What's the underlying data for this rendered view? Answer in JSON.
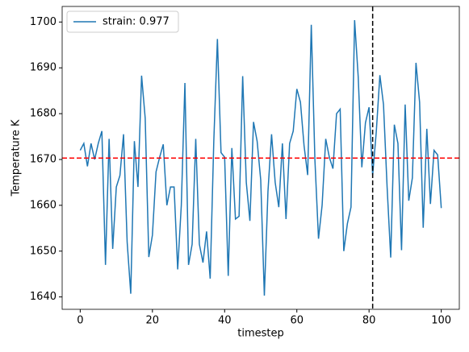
{
  "chart_data": {
    "type": "line",
    "x_label": "timestep",
    "y_label": "Temperature K",
    "x": [
      0,
      1,
      2,
      3,
      4,
      5,
      6,
      7,
      8,
      9,
      10,
      11,
      12,
      13,
      14,
      15,
      16,
      17,
      18,
      19,
      20,
      21,
      22,
      23,
      24,
      25,
      26,
      27,
      28,
      29,
      30,
      31,
      32,
      33,
      34,
      35,
      36,
      37,
      38,
      39,
      40,
      41,
      42,
      43,
      44,
      45,
      46,
      47,
      48,
      49,
      50,
      51,
      52,
      53,
      54,
      55,
      56,
      57,
      58,
      59,
      60,
      61,
      62,
      63,
      64,
      65,
      66,
      67,
      68,
      69,
      70,
      71,
      72,
      73,
      74,
      75,
      76,
      77,
      78,
      79,
      80,
      81,
      82,
      83,
      84,
      85,
      86,
      87,
      88,
      89,
      90,
      91,
      92,
      93,
      94,
      95,
      96,
      97,
      98,
      99,
      100
    ],
    "series": [
      {
        "name": "strain: 0.977",
        "color": "#1f77b4",
        "values": [
          1672,
          1673.5,
          1668.5,
          1673.5,
          1670,
          1673.5,
          1676.2,
          1647,
          1674.5,
          1650.5,
          1664,
          1666.5,
          1675.5,
          1652,
          1640.7,
          1674,
          1664,
          1688.3,
          1679,
          1648.7,
          1653.5,
          1667.3,
          1670.5,
          1673.3,
          1660,
          1664,
          1664,
          1646,
          1660,
          1686.7,
          1647,
          1651.5,
          1674.5,
          1651.5,
          1647.5,
          1654.3,
          1644,
          1674,
          1696.3,
          1671.5,
          1670.5,
          1644.6,
          1672.5,
          1657,
          1657.6,
          1688.2,
          1665,
          1656.6,
          1678.2,
          1674,
          1665.5,
          1640.3,
          1663,
          1675.5,
          1665,
          1659.6,
          1673.5,
          1657,
          1673.5,
          1676.2,
          1685.4,
          1682.5,
          1673,
          1666.6,
          1699.4,
          1670,
          1652.7,
          1660,
          1674.5,
          1670.5,
          1668,
          1680,
          1681,
          1650,
          1656,
          1659.6,
          1700.4,
          1688,
          1668.3,
          1678,
          1681.4,
          1666.6,
          1676,
          1688.4,
          1682,
          1664,
          1648.6,
          1677.6,
          1673.5,
          1650.2,
          1682,
          1661,
          1666,
          1691.1,
          1682.5,
          1655.1,
          1676.7,
          1660.3,
          1672,
          1671,
          1659.4
        ]
      }
    ],
    "hline": {
      "value": 1670.3,
      "color": "#ff0000"
    },
    "vline": {
      "value": 81,
      "color": "#000000"
    },
    "xlim": [
      -5,
      105
    ],
    "ylim": [
      1637.3,
      1703.4
    ],
    "xticks": [
      0,
      20,
      40,
      60,
      80,
      100
    ],
    "yticks": [
      1640,
      1650,
      1660,
      1670,
      1680,
      1690,
      1700
    ],
    "legend": "upper left"
  }
}
